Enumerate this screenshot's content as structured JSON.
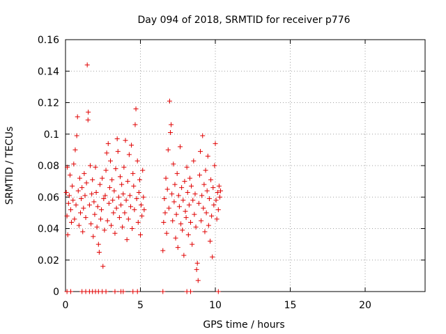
{
  "chart_data": {
    "type": "scatter",
    "title": "Day 094 of 2018, SRMTID for receiver p776",
    "xlabel": "GPS time / hours",
    "ylabel": "SRMTID / TECUs",
    "xlim": [
      0,
      24
    ],
    "ylim": [
      0,
      0.16
    ],
    "xticks": [
      0,
      5,
      10,
      15,
      20
    ],
    "xtick_labels": [
      "0",
      "5",
      "10",
      "15",
      "20"
    ],
    "yticks": [
      0,
      0.02,
      0.04,
      0.06,
      0.08,
      0.1,
      0.12,
      0.14,
      0.16
    ],
    "ytick_labels": [
      "0",
      "0.02",
      "0.04",
      "0.06",
      "0.08",
      "0.1",
      "0.12",
      "0.14",
      "0.16"
    ],
    "grid": true,
    "marker": "+",
    "colors": {
      "series": "#e00000",
      "grid": "#a0a0a0",
      "axis": "#000000"
    },
    "series": [
      {
        "name": "SRMTID",
        "points": [
          [
            0.05,
            0.063
          ],
          [
            0.1,
            0.048
          ],
          [
            0.12,
            0.079
          ],
          [
            0.15,
            0.036
          ],
          [
            0.2,
            0.056
          ],
          [
            0.25,
            0.061
          ],
          [
            0.3,
            0.074
          ],
          [
            0.35,
            0.052
          ],
          [
            0.4,
            0.044
          ],
          [
            0.45,
            0.067
          ],
          [
            0.5,
            0.058
          ],
          [
            0.55,
            0.081
          ],
          [
            0.6,
            0.046
          ],
          [
            0.65,
            0.09
          ],
          [
            0.7,
            0.055
          ],
          [
            0.75,
            0.099
          ],
          [
            0.8,
            0.111
          ],
          [
            0.85,
            0.064
          ],
          [
            0.9,
            0.042
          ],
          [
            0.95,
            0.072
          ],
          [
            1.0,
            0.05
          ],
          [
            1.05,
            0.059
          ],
          [
            1.1,
            0.066
          ],
          [
            1.15,
            0.038
          ],
          [
            1.2,
            0.053
          ],
          [
            1.25,
            0.075
          ],
          [
            1.3,
            0.061
          ],
          [
            1.35,
            0.047
          ],
          [
            1.4,
            0.069
          ],
          [
            1.45,
            0.144
          ],
          [
            1.5,
            0.109
          ],
          [
            1.52,
            0.114
          ],
          [
            1.6,
            0.055
          ],
          [
            1.65,
            0.08
          ],
          [
            1.7,
            0.043
          ],
          [
            1.75,
            0.062
          ],
          [
            1.8,
            0.071
          ],
          [
            1.85,
            0.035
          ],
          [
            1.9,
            0.057
          ],
          [
            1.95,
            0.049
          ],
          [
            2.0,
            0.079
          ],
          [
            2.05,
            0.063
          ],
          [
            2.1,
            0.041
          ],
          [
            2.15,
            0.054
          ],
          [
            2.2,
            0.03
          ],
          [
            2.25,
            0.025
          ],
          [
            2.3,
            0.068
          ],
          [
            2.35,
            0.046
          ],
          [
            2.4,
            0.052
          ],
          [
            2.45,
            0.072
          ],
          [
            2.5,
            0.016
          ],
          [
            2.55,
            0.059
          ],
          [
            2.6,
            0.039
          ],
          [
            2.65,
            0.061
          ],
          [
            2.7,
            0.077
          ],
          [
            2.75,
            0.088
          ],
          [
            2.8,
            0.045
          ],
          [
            2.85,
            0.094
          ],
          [
            2.9,
            0.056
          ],
          [
            2.95,
            0.066
          ],
          [
            3.0,
            0.083
          ],
          [
            3.05,
            0.042
          ],
          [
            3.1,
            0.071
          ],
          [
            3.15,
            0.058
          ],
          [
            3.2,
            0.05
          ],
          [
            3.25,
            0.064
          ],
          [
            3.3,
            0.037
          ],
          [
            3.35,
            0.078
          ],
          [
            3.4,
            0.053
          ],
          [
            3.45,
            0.097
          ],
          [
            3.5,
            0.089
          ],
          [
            3.55,
            0.06
          ],
          [
            3.6,
            0.047
          ],
          [
            3.65,
            0.073
          ],
          [
            3.7,
            0.055
          ],
          [
            3.75,
            0.068
          ],
          [
            3.8,
            0.041
          ],
          [
            3.85,
            0.062
          ],
          [
            3.9,
            0.079
          ],
          [
            3.95,
            0.05
          ],
          [
            4.0,
            0.096
          ],
          [
            4.05,
            0.058
          ],
          [
            4.1,
            0.033
          ],
          [
            4.15,
            0.07
          ],
          [
            4.2,
            0.046
          ],
          [
            4.25,
            0.087
          ],
          [
            4.3,
            0.061
          ],
          [
            4.35,
            0.054
          ],
          [
            4.4,
            0.093
          ],
          [
            4.45,
            0.04
          ],
          [
            4.5,
            0.075
          ],
          [
            4.55,
            0.067
          ],
          [
            4.6,
            0.052
          ],
          [
            4.65,
            0.106
          ],
          [
            4.7,
            0.116
          ],
          [
            4.75,
            0.059
          ],
          [
            4.8,
            0.083
          ],
          [
            4.85,
            0.044
          ],
          [
            4.9,
            0.063
          ],
          [
            4.95,
            0.071
          ],
          [
            5.0,
            0.036
          ],
          [
            5.05,
            0.055
          ],
          [
            5.1,
            0.048
          ],
          [
            5.15,
            0.077
          ],
          [
            5.2,
            0.06
          ],
          [
            5.25,
            0.052
          ],
          [
            6.5,
            0.026
          ],
          [
            6.55,
            0.044
          ],
          [
            6.6,
            0.059
          ],
          [
            6.65,
            0.05
          ],
          [
            6.7,
            0.072
          ],
          [
            6.75,
            0.037
          ],
          [
            6.8,
            0.065
          ],
          [
            6.85,
            0.09
          ],
          [
            6.9,
            0.053
          ],
          [
            6.95,
            0.121
          ],
          [
            7.0,
            0.101
          ],
          [
            7.05,
            0.106
          ],
          [
            7.1,
            0.062
          ],
          [
            7.15,
            0.045
          ],
          [
            7.2,
            0.081
          ],
          [
            7.25,
            0.057
          ],
          [
            7.3,
            0.068
          ],
          [
            7.35,
            0.034
          ],
          [
            7.4,
            0.049
          ],
          [
            7.45,
            0.075
          ],
          [
            7.5,
            0.028
          ],
          [
            7.55,
            0.061
          ],
          [
            7.6,
            0.054
          ],
          [
            7.65,
            0.092
          ],
          [
            7.7,
            0.043
          ],
          [
            7.75,
            0.066
          ],
          [
            7.8,
            0.039
          ],
          [
            7.85,
            0.058
          ],
          [
            7.9,
            0.023
          ],
          [
            7.95,
            0.07
          ],
          [
            8.0,
            0.051
          ],
          [
            8.05,
            0.047
          ],
          [
            8.1,
            0.079
          ],
          [
            8.15,
            0.063
          ],
          [
            8.2,
            0.036
          ],
          [
            8.25,
            0.055
          ],
          [
            8.3,
            0.072
          ],
          [
            8.35,
            0.044
          ],
          [
            8.4,
            0.067
          ],
          [
            8.45,
            0.03
          ],
          [
            8.5,
            0.058
          ],
          [
            8.55,
            0.083
          ],
          [
            8.6,
            0.049
          ],
          [
            8.65,
            0.062
          ],
          [
            8.7,
            0.041
          ],
          [
            8.75,
            0.014
          ],
          [
            8.8,
            0.018
          ],
          [
            8.85,
            0.007
          ],
          [
            8.9,
            0.056
          ],
          [
            8.95,
            0.074
          ],
          [
            9.0,
            0.089
          ],
          [
            9.05,
            0.045
          ],
          [
            9.1,
            0.061
          ],
          [
            9.15,
            0.099
          ],
          [
            9.2,
            0.053
          ],
          [
            9.25,
            0.068
          ],
          [
            9.3,
            0.038
          ],
          [
            9.35,
            0.077
          ],
          [
            9.4,
            0.05
          ],
          [
            9.45,
            0.064
          ],
          [
            9.5,
            0.086
          ],
          [
            9.55,
            0.042
          ],
          [
            9.6,
            0.059
          ],
          [
            9.65,
            0.032
          ],
          [
            9.7,
            0.071
          ],
          [
            9.75,
            0.048
          ],
          [
            9.8,
            0.022
          ],
          [
            9.85,
            0.066
          ],
          [
            9.9,
            0.055
          ],
          [
            9.95,
            0.08
          ],
          [
            10.0,
            0.094
          ],
          [
            10.05,
            0.058
          ],
          [
            10.1,
            0.046
          ],
          [
            10.15,
            0.063
          ],
          [
            10.2,
            0.052
          ],
          [
            10.25,
            0.067
          ],
          [
            10.3,
            0.06
          ],
          [
            10.35,
            0.064
          ],
          [
            0.1,
            0.0
          ],
          [
            0.35,
            0.0
          ],
          [
            1.1,
            0.0
          ],
          [
            1.35,
            0.0
          ],
          [
            1.6,
            0.0
          ],
          [
            1.8,
            0.0
          ],
          [
            2.0,
            0.0
          ],
          [
            2.2,
            0.0
          ],
          [
            2.45,
            0.0
          ],
          [
            2.7,
            0.0
          ],
          [
            3.3,
            0.0
          ],
          [
            3.7,
            0.0
          ],
          [
            3.85,
            0.0
          ],
          [
            4.5,
            0.0
          ],
          [
            4.8,
            0.0
          ],
          [
            6.5,
            0.0
          ],
          [
            8.1,
            0.0
          ],
          [
            8.35,
            0.0
          ],
          [
            10.2,
            0.0
          ]
        ]
      }
    ]
  }
}
